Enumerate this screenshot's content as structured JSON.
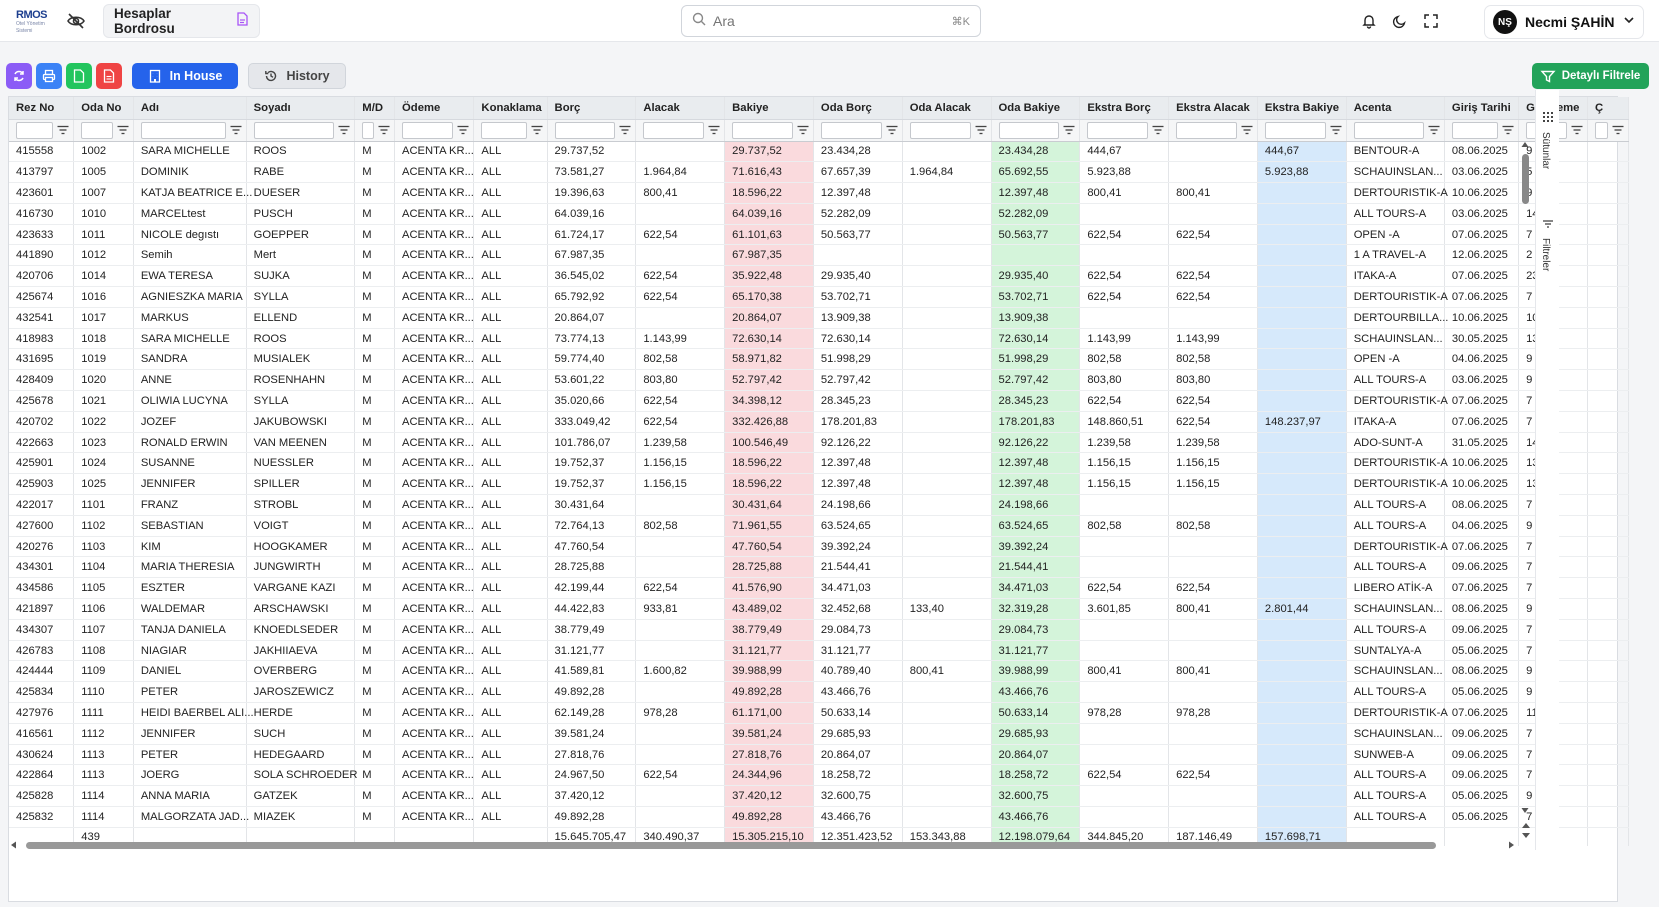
{
  "header": {
    "logo_main": "RMOS",
    "logo_sub": "Otel Yönetim Sistemi",
    "page_tab_title": "Hesaplar Bordrosu",
    "search_placeholder": "Ara",
    "search_shortcut": "⌘K",
    "user_initials": "NŞ",
    "user_name": "Necmi ŞAHİN"
  },
  "toolbar": {
    "in_house_label": "In House",
    "history_label": "History",
    "detailed_filter_label": "Detaylı Filtrele"
  },
  "side_panel": {
    "columns_label": "Sütunlar",
    "filters_label": "Filtreler"
  },
  "colors": {
    "primary": "#2563eb",
    "success": "#22a35a",
    "refresh": "#8b5cf6",
    "print": "#3b82f6",
    "excel": "#22c55e",
    "pdf": "#ef4444",
    "balance_tint": "#fadadd",
    "room_balance_tint": "#d4f4da",
    "extra_balance_tint": "#d6e9fb"
  },
  "table": {
    "columns": [
      "Rez No",
      "Oda No",
      "Adı",
      "Soyadı",
      "M/D",
      "Ödeme",
      "Konaklama",
      "Borç",
      "Alacak",
      "Bakiye",
      "Oda Borç",
      "Oda Alacak",
      "Oda Bakiye",
      "Ekstra Borç",
      "Ekstra Alacak",
      "Ekstra Bakiye",
      "Acenta",
      "Giriş Tarihi",
      "Geceleme",
      "Ç"
    ],
    "rows": [
      [
        "415558",
        "1002",
        "SARA MICHELLE",
        "ROOS",
        "M",
        "ACENTA KR...",
        "ALL",
        "29.737,52",
        "",
        "29.737,52",
        "23.434,28",
        "",
        "23.434,28",
        "444,67",
        "",
        "444,67",
        "BENTOUR-A",
        "08.06.2025",
        "9",
        ""
      ],
      [
        "413797",
        "1005",
        "DOMINIK",
        "RABE",
        "M",
        "ACENTA KR...",
        "ALL",
        "73.581,27",
        "1.964,84",
        "71.616,43",
        "67.657,39",
        "1.964,84",
        "65.692,55",
        "5.923,88",
        "",
        "5.923,88",
        "SCHAUINSLAN...",
        "03.06.2025",
        "5",
        ""
      ],
      [
        "423601",
        "1007",
        "KATJA BEATRICE E...",
        "DUESER",
        "M",
        "ACENTA KR...",
        "ALL",
        "19.396,63",
        "800,41",
        "18.596,22",
        "12.397,48",
        "",
        "12.397,48",
        "800,41",
        "800,41",
        "",
        "DERTOURISTIK-A",
        "10.06.2025",
        "9",
        ""
      ],
      [
        "416730",
        "1010",
        "MARCELtest",
        "PUSCH",
        "M",
        "ACENTA KR...",
        "ALL",
        "64.039,16",
        "",
        "64.039,16",
        "52.282,09",
        "",
        "52.282,09",
        "",
        "",
        "",
        "ALL TOURS-A",
        "03.06.2025",
        "14",
        ""
      ],
      [
        "423633",
        "1011",
        "NICOLE degıstı",
        "GOEPPER",
        "M",
        "ACENTA KR...",
        "ALL",
        "61.724,17",
        "622,54",
        "61.101,63",
        "50.563,77",
        "",
        "50.563,77",
        "622,54",
        "622,54",
        "",
        "OPEN -A",
        "07.06.2025",
        "7",
        ""
      ],
      [
        "441890",
        "1012",
        "Semih",
        "Mert",
        "M",
        "ACENTA KR...",
        "ALL",
        "67.987,35",
        "",
        "67.987,35",
        "",
        "",
        "",
        "",
        "",
        "",
        "1 A TRAVEL-A",
        "12.06.2025",
        "2",
        ""
      ],
      [
        "420706",
        "1014",
        "EWA TERESA",
        "SUJKA",
        "M",
        "ACENTA KR...",
        "ALL",
        "36.545,02",
        "622,54",
        "35.922,48",
        "29.935,40",
        "",
        "29.935,40",
        "622,54",
        "622,54",
        "",
        "ITAKA-A",
        "07.06.2025",
        "23",
        ""
      ],
      [
        "425674",
        "1016",
        "AGNIESZKA MARIA",
        "SYLLA",
        "M",
        "ACENTA KR...",
        "ALL",
        "65.792,92",
        "622,54",
        "65.170,38",
        "53.702,71",
        "",
        "53.702,71",
        "622,54",
        "622,54",
        "",
        "DERTOURISTIK-A",
        "07.06.2025",
        "7",
        ""
      ],
      [
        "432541",
        "1017",
        "MARKUS",
        "ELLEND",
        "M",
        "ACENTA KR...",
        "ALL",
        "20.864,07",
        "",
        "20.864,07",
        "13.909,38",
        "",
        "13.909,38",
        "",
        "",
        "",
        "DERTOURBILLA...",
        "10.06.2025",
        "10",
        ""
      ],
      [
        "418983",
        "1018",
        "SARA MICHELLE",
        "ROOS",
        "M",
        "ACENTA KR...",
        "ALL",
        "73.774,13",
        "1.143,99",
        "72.630,14",
        "72.630,14",
        "",
        "72.630,14",
        "1.143,99",
        "1.143,99",
        "",
        "SCHAUINSLAN...",
        "30.05.2025",
        "13",
        ""
      ],
      [
        "431695",
        "1019",
        "SANDRA",
        "MUSIALEK",
        "M",
        "ACENTA KR...",
        "ALL",
        "59.774,40",
        "802,58",
        "58.971,82",
        "51.998,29",
        "",
        "51.998,29",
        "802,58",
        "802,58",
        "",
        "OPEN -A",
        "04.06.2025",
        "9",
        ""
      ],
      [
        "428409",
        "1020",
        "ANNE",
        "ROSENHAHN",
        "M",
        "ACENTA KR...",
        "ALL",
        "53.601,22",
        "803,80",
        "52.797,42",
        "52.797,42",
        "",
        "52.797,42",
        "803,80",
        "803,80",
        "",
        "ALL TOURS-A",
        "03.06.2025",
        "9",
        ""
      ],
      [
        "425678",
        "1021",
        "OLIWIA LUCYNA",
        "SYLLA",
        "M",
        "ACENTA KR...",
        "ALL",
        "35.020,66",
        "622,54",
        "34.398,12",
        "28.345,23",
        "",
        "28.345,23",
        "622,54",
        "622,54",
        "",
        "DERTOURISTIK-A",
        "07.06.2025",
        "7",
        ""
      ],
      [
        "420702",
        "1022",
        "JOZEF",
        "JAKUBOWSKI",
        "M",
        "ACENTA KR...",
        "ALL",
        "333.049,42",
        "622,54",
        "332.426,88",
        "178.201,83",
        "",
        "178.201,83",
        "148.860,51",
        "622,54",
        "148.237,97",
        "ITAKA-A",
        "07.06.2025",
        "7",
        ""
      ],
      [
        "422663",
        "1023",
        "RONALD ERWIN",
        "VAN MEENEN",
        "M",
        "ACENTA KR...",
        "ALL",
        "101.786,07",
        "1.239,58",
        "100.546,49",
        "92.126,22",
        "",
        "92.126,22",
        "1.239,58",
        "1.239,58",
        "",
        "ADO-SUNT-A",
        "31.05.2025",
        "14",
        ""
      ],
      [
        "425901",
        "1024",
        "SUSANNE",
        "NUESSLER",
        "M",
        "ACENTA KR...",
        "ALL",
        "19.752,37",
        "1.156,15",
        "18.596,22",
        "12.397,48",
        "",
        "12.397,48",
        "1.156,15",
        "1.156,15",
        "",
        "DERTOURISTIK-A",
        "10.06.2025",
        "13",
        ""
      ],
      [
        "425903",
        "1025",
        "JENNIFER",
        "SPILLER",
        "M",
        "ACENTA KR...",
        "ALL",
        "19.752,37",
        "1.156,15",
        "18.596,22",
        "12.397,48",
        "",
        "12.397,48",
        "1.156,15",
        "1.156,15",
        "",
        "DERTOURISTIK-A",
        "10.06.2025",
        "13",
        ""
      ],
      [
        "422017",
        "1101",
        "FRANZ",
        "STROBL",
        "M",
        "ACENTA KR...",
        "ALL",
        "30.431,64",
        "",
        "30.431,64",
        "24.198,66",
        "",
        "24.198,66",
        "",
        "",
        "",
        "ALL TOURS-A",
        "08.06.2025",
        "7",
        ""
      ],
      [
        "427600",
        "1102",
        "SEBASTIAN",
        "VOIGT",
        "M",
        "ACENTA KR...",
        "ALL",
        "72.764,13",
        "802,58",
        "71.961,55",
        "63.524,65",
        "",
        "63.524,65",
        "802,58",
        "802,58",
        "",
        "ALL TOURS-A",
        "04.06.2025",
        "9",
        ""
      ],
      [
        "420276",
        "1103",
        "KIM",
        "HOOGKAMER",
        "M",
        "ACENTA KR...",
        "ALL",
        "47.760,54",
        "",
        "47.760,54",
        "39.392,24",
        "",
        "39.392,24",
        "",
        "",
        "",
        "DERTOURISTIK-A",
        "07.06.2025",
        "7",
        ""
      ],
      [
        "434301",
        "1104",
        "MARIA THERESIA",
        "JUNGWIRTH",
        "M",
        "ACENTA KR...",
        "ALL",
        "28.725,88",
        "",
        "28.725,88",
        "21.544,41",
        "",
        "21.544,41",
        "",
        "",
        "",
        "ALL TOURS-A",
        "09.06.2025",
        "7",
        ""
      ],
      [
        "434586",
        "1105",
        "ESZTER",
        "VARGANE KAZI",
        "M",
        "ACENTA KR...",
        "ALL",
        "42.199,44",
        "622,54",
        "41.576,90",
        "34.471,03",
        "",
        "34.471,03",
        "622,54",
        "622,54",
        "",
        "LIBERO ATİK-A",
        "07.06.2025",
        "7",
        ""
      ],
      [
        "421897",
        "1106",
        "WALDEMAR",
        "ARSCHAWSKI",
        "M",
        "ACENTA KR...",
        "ALL",
        "44.422,83",
        "933,81",
        "43.489,02",
        "32.452,68",
        "133,40",
        "32.319,28",
        "3.601,85",
        "800,41",
        "2.801,44",
        "SCHAUINSLAN...",
        "08.06.2025",
        "9",
        ""
      ],
      [
        "434307",
        "1107",
        "TANJA DANIELA",
        "KNOEDLSEDER",
        "M",
        "ACENTA KR...",
        "ALL",
        "38.779,49",
        "",
        "38.779,49",
        "29.084,73",
        "",
        "29.084,73",
        "",
        "",
        "",
        "ALL TOURS-A",
        "09.06.2025",
        "7",
        ""
      ],
      [
        "426783",
        "1108",
        "NIAGIAR",
        "JAKHIIAEVA",
        "M",
        "ACENTA KR...",
        "ALL",
        "31.121,77",
        "",
        "31.121,77",
        "31.121,77",
        "",
        "31.121,77",
        "",
        "",
        "",
        "SUNTALYA-A",
        "05.06.2025",
        "7",
        ""
      ],
      [
        "424444",
        "1109",
        "DANIEL",
        "OVERBERG",
        "M",
        "ACENTA KR...",
        "ALL",
        "41.589,81",
        "1.600,82",
        "39.988,99",
        "40.789,40",
        "800,41",
        "39.988,99",
        "800,41",
        "800,41",
        "",
        "SCHAUINSLAN...",
        "08.06.2025",
        "9",
        ""
      ],
      [
        "425834",
        "1110",
        "PETER",
        "JAROSZEWICZ",
        "M",
        "ACENTA KR...",
        "ALL",
        "49.892,28",
        "",
        "49.892,28",
        "43.466,76",
        "",
        "43.466,76",
        "",
        "",
        "",
        "ALL TOURS-A",
        "05.06.2025",
        "9",
        ""
      ],
      [
        "427976",
        "1111",
        "HEIDI BAERBEL ALI...",
        "HERDE",
        "M",
        "ACENTA KR...",
        "ALL",
        "62.149,28",
        "978,28",
        "61.171,00",
        "50.633,14",
        "",
        "50.633,14",
        "978,28",
        "978,28",
        "",
        "DERTOURISTIK-A",
        "07.06.2025",
        "11",
        ""
      ],
      [
        "416561",
        "1112",
        "JENNIFER",
        "SUCH",
        "M",
        "ACENTA KR...",
        "ALL",
        "39.581,24",
        "",
        "39.581,24",
        "29.685,93",
        "",
        "29.685,93",
        "",
        "",
        "",
        "SCHAUINSLAN...",
        "09.06.2025",
        "7",
        ""
      ],
      [
        "430624",
        "1113",
        "PETER",
        "HEDEGAARD",
        "M",
        "ACENTA KR...",
        "ALL",
        "27.818,76",
        "",
        "27.818,76",
        "20.864,07",
        "",
        "20.864,07",
        "",
        "",
        "",
        "SUNWEB-A",
        "09.06.2025",
        "7",
        ""
      ],
      [
        "422864",
        "1113",
        "JOERG",
        "SOLA SCHROEDER",
        "M",
        "ACENTA KR...",
        "ALL",
        "24.967,50",
        "622,54",
        "24.344,96",
        "18.258,72",
        "",
        "18.258,72",
        "622,54",
        "622,54",
        "",
        "ALL TOURS-A",
        "09.06.2025",
        "7",
        ""
      ],
      [
        "425828",
        "1114",
        "ANNA MARIA",
        "GATZEK",
        "M",
        "ACENTA KR...",
        "ALL",
        "37.420,12",
        "",
        "37.420,12",
        "32.600,75",
        "",
        "32.600,75",
        "",
        "",
        "",
        "ALL TOURS-A",
        "05.06.2025",
        "9",
        ""
      ],
      [
        "425832",
        "1114",
        "MALGORZATA JAD...",
        "MIAZEK",
        "M",
        "ACENTA KR...",
        "ALL",
        "49.892,28",
        "",
        "49.892,28",
        "43.466,76",
        "",
        "43.466,76",
        "",
        "",
        "",
        "ALL TOURS-A",
        "05.06.2025",
        "7",
        ""
      ]
    ],
    "totals": [
      "",
      "439",
      "",
      "",
      "",
      "",
      "",
      "15.645.705,47",
      "340.490,37",
      "15.305.215,10",
      "12.351.423,52",
      "153.343,88",
      "12.198.079,64",
      "344.845,20",
      "187.146,49",
      "157.698,71",
      "",
      "",
      "",
      ""
    ]
  }
}
